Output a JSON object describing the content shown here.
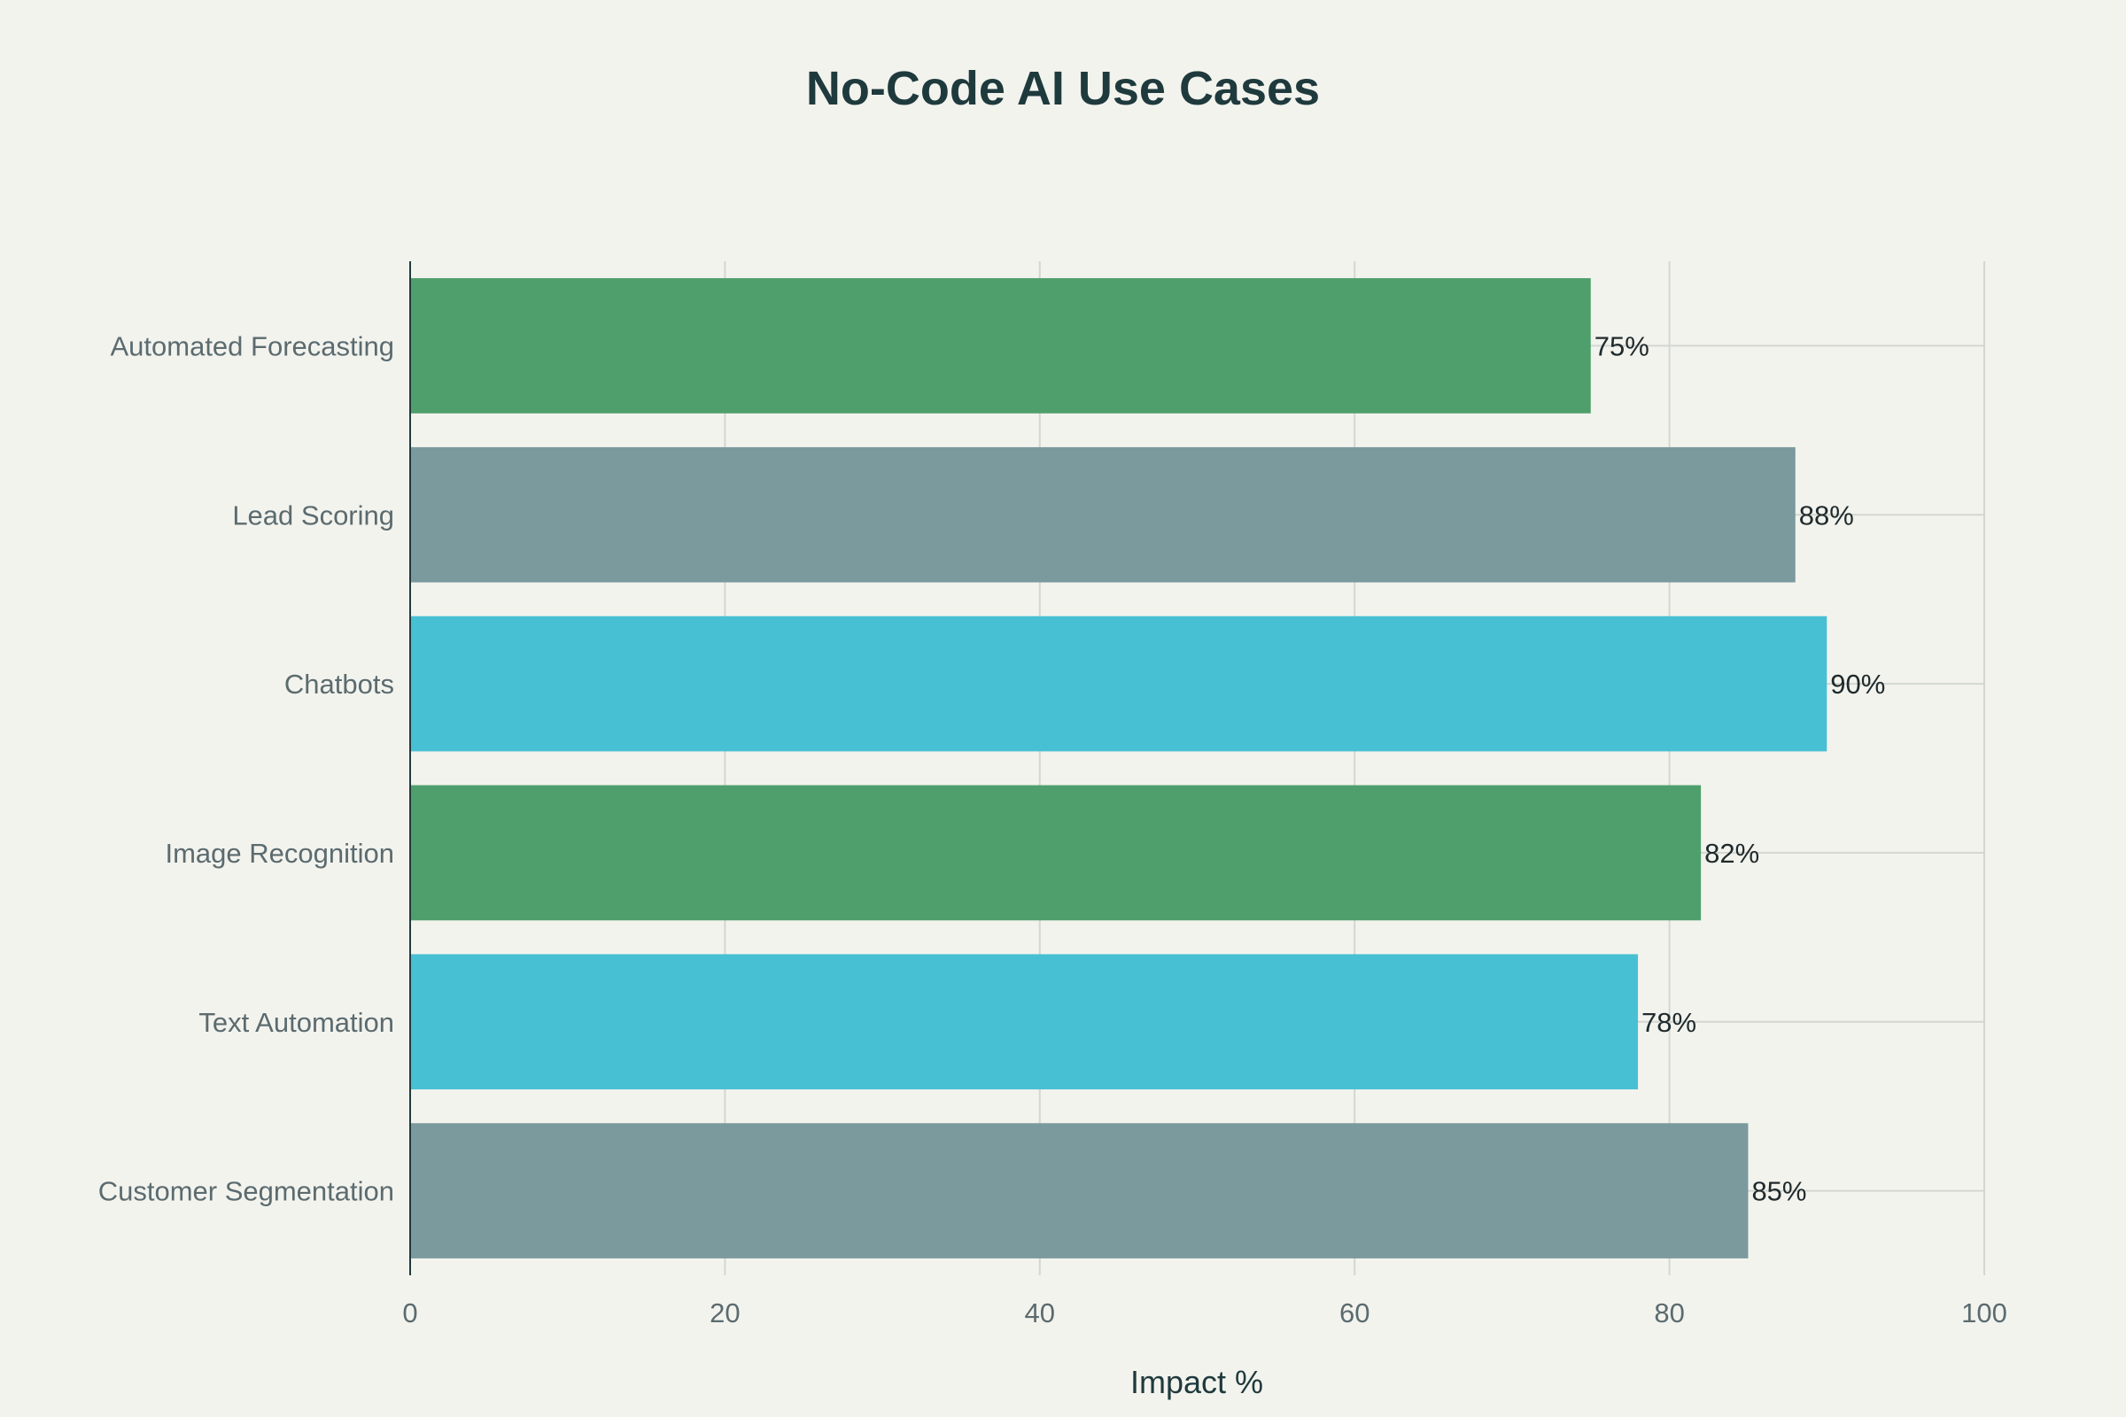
{
  "chart_data": {
    "type": "bar",
    "orientation": "horizontal",
    "title": "No-Code AI Use Cases",
    "xlabel": "Impact %",
    "ylabel": "",
    "xlim": [
      0,
      100
    ],
    "xticks": [
      "0",
      "20",
      "40",
      "60",
      "80",
      "100"
    ],
    "grid": true,
    "legend": "none",
    "categories": [
      "Automated Forecasting",
      "Lead Scoring",
      "Chatbots",
      "Image Recognition",
      "Text Automation",
      "Customer Segmentation"
    ],
    "values": [
      75,
      88,
      90,
      82,
      78,
      85
    ],
    "data_labels": [
      "75%",
      "88%",
      "90%",
      "82%",
      "78%",
      "85%"
    ],
    "colors": [
      "#4f9f6c",
      "#7b9a9e",
      "#48c0d3",
      "#4f9f6c",
      "#48c0d3",
      "#7b9a9e"
    ]
  }
}
